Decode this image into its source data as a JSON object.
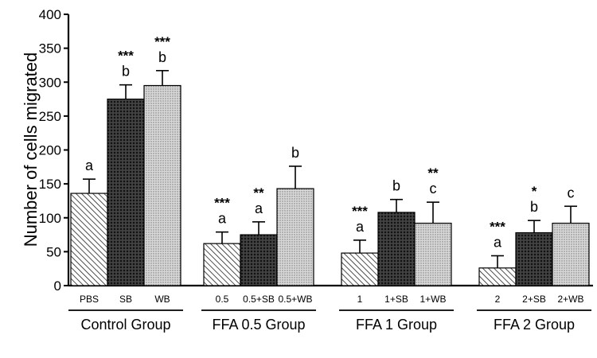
{
  "chart_data": {
    "type": "bar",
    "ylabel": "Number of cells migrated",
    "xlabel": "",
    "ylim": [
      0,
      400
    ],
    "yticks": [
      0,
      50,
      100,
      150,
      200,
      250,
      300,
      350,
      400
    ],
    "grid": false,
    "legend": "none",
    "groups": [
      {
        "label": "Control Group",
        "bars": [
          {
            "category": "PBS",
            "value": 136,
            "error": 21,
            "letter": "a",
            "stars": "",
            "pattern": "diag-right"
          },
          {
            "category": "SB",
            "value": 275,
            "error": 21,
            "letter": "b",
            "stars": "***",
            "pattern": "crosshatch"
          },
          {
            "category": "WB",
            "value": 295,
            "error": 22,
            "letter": "b",
            "stars": "***",
            "pattern": "dots"
          }
        ]
      },
      {
        "label": "FFA 0.5 Group",
        "bars": [
          {
            "category": "0.5",
            "value": 62,
            "error": 17,
            "letter": "a",
            "stars": "***",
            "pattern": "diag-right"
          },
          {
            "category": "0.5+SB",
            "value": 75,
            "error": 19,
            "letter": "a",
            "stars": "**",
            "pattern": "crosshatch"
          },
          {
            "category": "0.5+WB",
            "value": 143,
            "error": 33,
            "letter": "b",
            "stars": "",
            "pattern": "dots"
          }
        ]
      },
      {
        "label": "FFA 1 Group",
        "bars": [
          {
            "category": "1",
            "value": 48,
            "error": 19,
            "letter": "a",
            "stars": "***",
            "pattern": "diag-right"
          },
          {
            "category": "1+SB",
            "value": 108,
            "error": 19,
            "letter": "b",
            "stars": "",
            "pattern": "crosshatch"
          },
          {
            "category": "1+WB",
            "value": 92,
            "error": 31,
            "letter": "c",
            "stars": "**",
            "pattern": "dots"
          }
        ]
      },
      {
        "label": "FFA 2 Group",
        "bars": [
          {
            "category": "2",
            "value": 26,
            "error": 18,
            "letter": "a",
            "stars": "***",
            "pattern": "diag-right"
          },
          {
            "category": "2+SB",
            "value": 78,
            "error": 18,
            "letter": "b",
            "stars": "*",
            "pattern": "crosshatch"
          },
          {
            "category": "2+WB",
            "value": 92,
            "error": 25,
            "letter": "c",
            "stars": "",
            "pattern": "dots"
          }
        ]
      }
    ]
  }
}
